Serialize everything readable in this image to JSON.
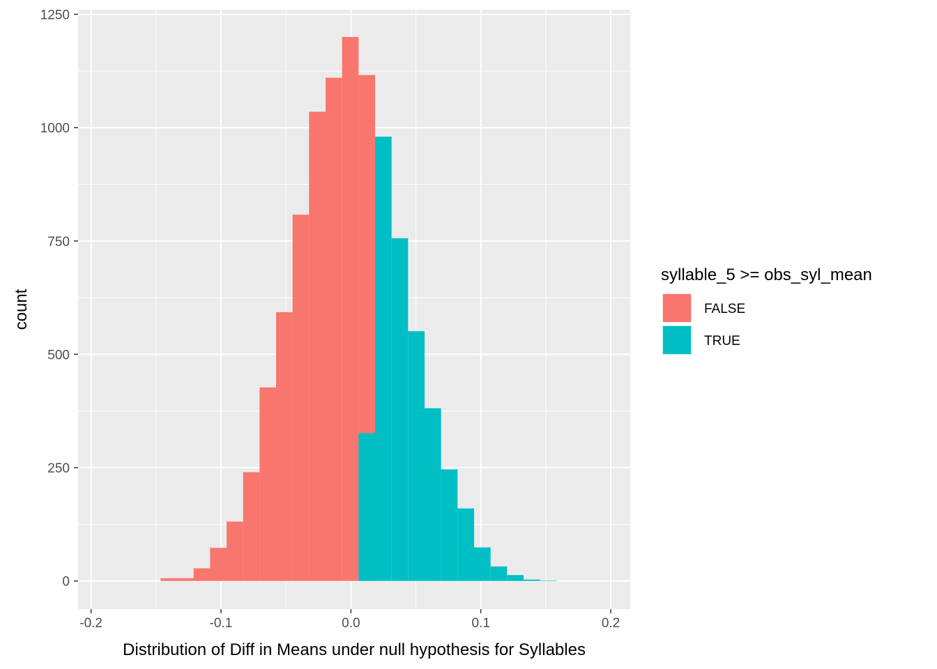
{
  "chart_data": {
    "type": "bar",
    "subtype": "histogram",
    "xlabel": "Distribution of Diff in Means under null hypothesis for Syllables",
    "ylabel": "count",
    "xlim": [
      -0.21,
      0.215
    ],
    "ylim": [
      -62,
      1260
    ],
    "x_ticks": [
      -0.2,
      -0.1,
      0.0,
      0.1,
      0.2
    ],
    "x_tick_labels": [
      "-0.2",
      "-0.1",
      "0.0",
      "0.1",
      "0.2"
    ],
    "y_ticks": [
      0,
      250,
      500,
      750,
      1000,
      1250
    ],
    "y_tick_labels": [
      "0",
      "250",
      "500",
      "750",
      "1000",
      "1250"
    ],
    "grid": true,
    "legend": {
      "title": "syllable_5 >= obs_syl_mean",
      "placement": "right",
      "entries": [
        {
          "label": "FALSE",
          "color": "#F8766D"
        },
        {
          "label": "TRUE",
          "color": "#00BFC4"
        }
      ]
    },
    "series": [
      {
        "name": "FALSE",
        "color": "#F8766D",
        "bins": [
          {
            "x0": -0.1465,
            "x1": -0.1211,
            "count": 6
          },
          {
            "x0": -0.1211,
            "x1": -0.1084,
            "count": 28
          },
          {
            "x0": -0.1084,
            "x1": -0.0957,
            "count": 73
          },
          {
            "x0": -0.0957,
            "x1": -0.083,
            "count": 131
          },
          {
            "x0": -0.083,
            "x1": -0.0703,
            "count": 240
          },
          {
            "x0": -0.0703,
            "x1": -0.0576,
            "count": 427
          },
          {
            "x0": -0.0576,
            "x1": -0.0449,
            "count": 593
          },
          {
            "x0": -0.0449,
            "x1": -0.0322,
            "count": 808
          },
          {
            "x0": -0.0322,
            "x1": -0.0195,
            "count": 1035
          },
          {
            "x0": -0.0195,
            "x1": -0.0068,
            "count": 1110
          },
          {
            "x0": -0.0068,
            "x1": 0.0059,
            "count": 1200
          },
          {
            "x0": 0.0059,
            "x1": 0.0186,
            "count": 1116
          },
          {
            "x0": 0.0186,
            "x1": 0.0195,
            "count": 980
          }
        ]
      },
      {
        "name": "TRUE",
        "color": "#00BFC4",
        "bins": [
          {
            "x0": 0.0059,
            "x1": 0.0186,
            "count": 326
          },
          {
            "x0": 0.0186,
            "x1": 0.0313,
            "count": 980
          },
          {
            "x0": 0.0313,
            "x1": 0.044,
            "count": 756
          },
          {
            "x0": 0.044,
            "x1": 0.0567,
            "count": 551
          },
          {
            "x0": 0.0567,
            "x1": 0.0694,
            "count": 381
          },
          {
            "x0": 0.0694,
            "x1": 0.0821,
            "count": 246
          },
          {
            "x0": 0.0821,
            "x1": 0.0948,
            "count": 160
          },
          {
            "x0": 0.0948,
            "x1": 0.1075,
            "count": 74
          },
          {
            "x0": 0.1075,
            "x1": 0.1202,
            "count": 32
          },
          {
            "x0": 0.1202,
            "x1": 0.1329,
            "count": 13
          },
          {
            "x0": 0.1329,
            "x1": 0.1456,
            "count": 3
          },
          {
            "x0": 0.1456,
            "x1": 0.1583,
            "count": 1
          }
        ]
      }
    ]
  }
}
